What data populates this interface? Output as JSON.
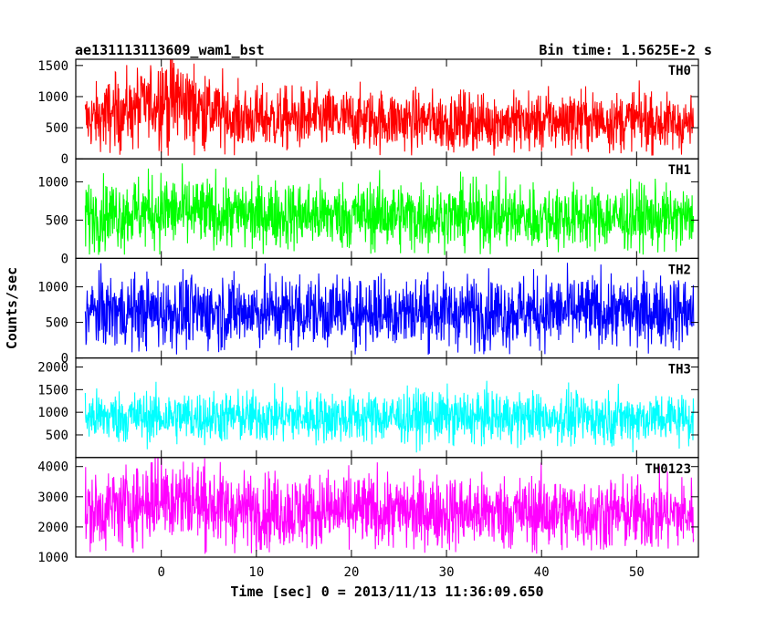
{
  "chart_data": {
    "type": "line",
    "title": "ae131113113609_wam1_bst",
    "subtitle": "Bin time: 1.5625E-2 s",
    "xlabel": "Time [sec] 0 = 2013/11/13 11:36:09.650",
    "ylabel": "Counts/sec",
    "xlim": [
      -9,
      56.5
    ],
    "xticks": [
      0,
      10,
      20,
      30,
      40,
      50
    ],
    "x_start": -8,
    "x_end": 56,
    "bin_time": 0.015625,
    "colors": {
      "axes": "#000000",
      "background": "#ffffff"
    },
    "panels": [
      {
        "name": "TH0",
        "color": "#ff0000",
        "ylim": [
          0,
          1600
        ],
        "yticks": [
          0,
          500,
          1000,
          1500
        ],
        "profile": [
          [
            -8,
            620
          ],
          [
            -3,
            800
          ],
          [
            1,
            980
          ],
          [
            4,
            820
          ],
          [
            8,
            650
          ],
          [
            15,
            640
          ],
          [
            25,
            620
          ],
          [
            35,
            580
          ],
          [
            45,
            620
          ],
          [
            56,
            560
          ]
        ],
        "spread": 0.55
      },
      {
        "name": "TH1",
        "color": "#00ff00",
        "ylim": [
          0,
          1300
        ],
        "yticks": [
          0,
          500,
          1000
        ],
        "profile": [
          [
            -8,
            560
          ],
          [
            0,
            620
          ],
          [
            5,
            580
          ],
          [
            56,
            520
          ]
        ],
        "spread": 0.55
      },
      {
        "name": "TH2",
        "color": "#0000ff",
        "ylim": [
          0,
          1400
        ],
        "yticks": [
          0,
          500,
          1000
        ],
        "profile": [
          [
            -8,
            650
          ],
          [
            56,
            650
          ]
        ],
        "spread": 0.55
      },
      {
        "name": "TH3",
        "color": "#00ffff",
        "ylim": [
          0,
          2200
        ],
        "yticks": [
          500,
          1000,
          1500,
          2000
        ],
        "profile": [
          [
            -8,
            900
          ],
          [
            56,
            880
          ]
        ],
        "spread": 0.45
      },
      {
        "name": "TH0123",
        "color": "#ff00ff",
        "ylim": [
          1000,
          4300
        ],
        "yticks": [
          1000,
          2000,
          3000,
          4000
        ],
        "profile": [
          [
            -8,
            2450
          ],
          [
            -2,
            2800
          ],
          [
            1,
            3050
          ],
          [
            4,
            2800
          ],
          [
            8,
            2550
          ],
          [
            56,
            2420
          ]
        ],
        "spread": 0.35
      }
    ]
  }
}
